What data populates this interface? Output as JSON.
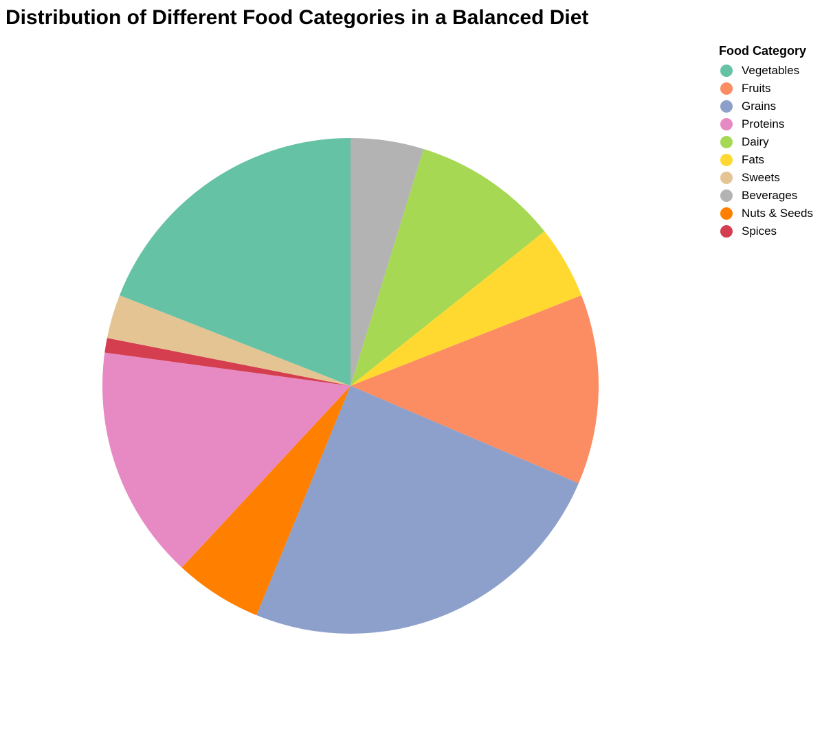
{
  "chart_data": {
    "type": "pie",
    "title": "Distribution of Different Food Categories in a Balanced Diet",
    "legend_title": "Food Category",
    "legend_position": "top-right",
    "categories": [
      "Vegetables",
      "Fruits",
      "Grains",
      "Proteins",
      "Dairy",
      "Fats",
      "Sweets",
      "Beverages",
      "Nuts & Seeds",
      "Spices"
    ],
    "values": [
      20,
      13,
      26,
      16,
      10,
      5,
      3,
      5,
      6,
      1
    ],
    "colors": {
      "Vegetables": "#66c2a5",
      "Fruits": "#fc8d62",
      "Grains": "#8da0cb",
      "Proteins": "#e78ac3",
      "Dairy": "#a6d854",
      "Fats": "#ffd92f",
      "Sweets": "#e5c494",
      "Beverages": "#b3b3b3",
      "Nuts & Seeds": "#ff7f00",
      "Spices": "#d53e4f"
    },
    "draw_order": [
      "Beverages",
      "Dairy",
      "Fats",
      "Fruits",
      "Grains",
      "Nuts & Seeds",
      "Proteins",
      "Spices",
      "Sweets",
      "Vegetables"
    ]
  }
}
